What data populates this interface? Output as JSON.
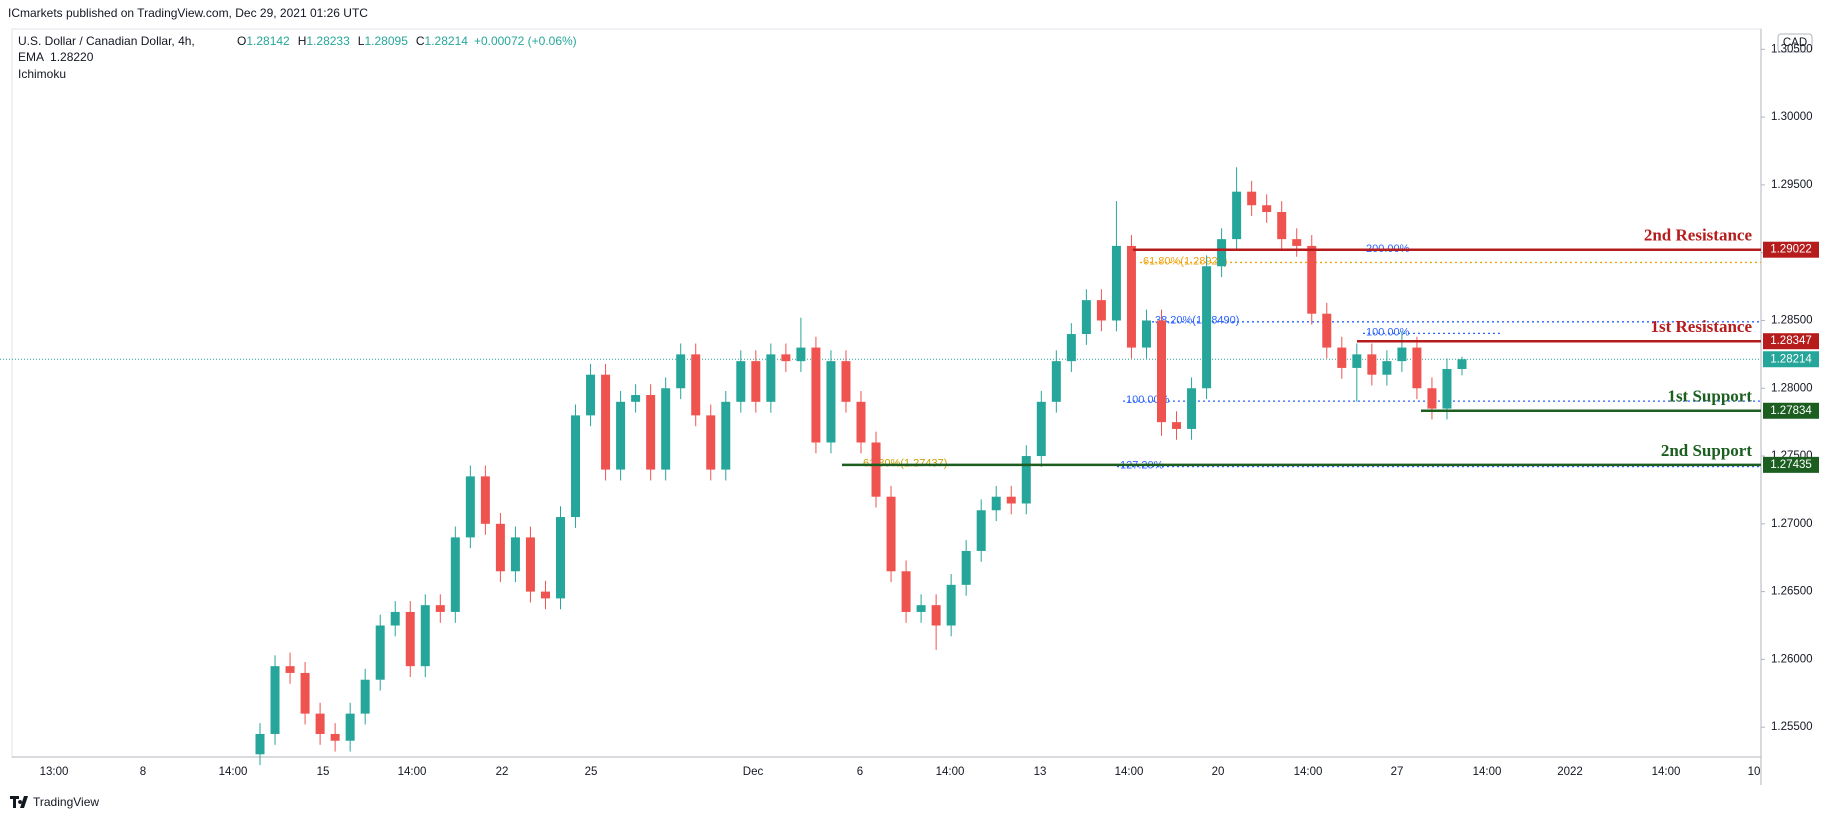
{
  "header": {
    "publisher": "ICmarkets published on TradingView.com, Dec 29, 2021 01:26 UTC"
  },
  "chart_data": {
    "type": "candlestick",
    "title": "U.S. Dollar / Canadian Dollar, 4h,",
    "currency": "CAD",
    "ohlc_prefixes": [
      "O",
      "H",
      "L",
      "C"
    ],
    "change": "+0.00072 (+0.06%)",
    "indicators": [
      "EMA",
      "Ichimoku"
    ],
    "ema_value": {
      "value": 1.2822,
      "label": "1.28220"
    },
    "up_color": "#26a69a",
    "down_color": "#ef5350",
    "open": [
      1.253,
      1.2545,
      1.2595,
      1.259,
      1.256,
      1.2545,
      1.254,
      1.256,
      1.2585,
      1.2625,
      1.2635,
      1.2595,
      1.264,
      1.2635,
      1.269,
      1.2735,
      1.27,
      1.2665,
      1.269,
      1.265,
      1.2645,
      1.2705,
      1.278,
      1.281,
      1.274,
      1.279,
      1.2795,
      1.274,
      1.28,
      1.2825,
      1.278,
      1.274,
      1.279,
      1.282,
      1.279,
      1.2825,
      1.282,
      1.283,
      1.276,
      1.282,
      1.279,
      1.276,
      1.272,
      1.2665,
      1.2635,
      1.264,
      1.2625,
      1.2655,
      1.268,
      1.271,
      1.272,
      1.2715,
      1.275,
      1.279,
      1.282,
      1.284,
      1.2865,
      1.285,
      1.2905,
      1.283,
      1.285,
      1.2775,
      1.277,
      1.28,
      1.289,
      1.291,
      1.2945,
      1.2935,
      1.293,
      1.291,
      1.2905,
      1.2855,
      1.283,
      1.2815,
      1.2825,
      1.281,
      1.282,
      1.283,
      1.28,
      1.2785,
      1.28142
    ],
    "high": [
      1.2553,
      1.2603,
      1.2605,
      1.2598,
      1.2568,
      1.2553,
      1.2568,
      1.2593,
      1.2633,
      1.2643,
      1.2643,
      1.2648,
      1.2648,
      1.2698,
      1.2743,
      1.2743,
      1.2708,
      1.2698,
      1.2698,
      1.2658,
      1.2713,
      1.2788,
      1.2818,
      1.2818,
      1.2798,
      1.2803,
      1.2803,
      1.2808,
      1.2833,
      1.2833,
      1.2788,
      1.2798,
      1.2828,
      1.2828,
      1.2833,
      1.2833,
      1.2852,
      1.2838,
      1.2828,
      1.2828,
      1.2798,
      1.2768,
      1.2728,
      1.2673,
      1.2648,
      1.2648,
      1.2663,
      1.2688,
      1.2718,
      1.2728,
      1.2728,
      1.2758,
      1.2798,
      1.2828,
      1.2848,
      1.2873,
      1.2873,
      1.2938,
      1.2913,
      1.2858,
      1.2858,
      1.2783,
      1.2808,
      1.2898,
      1.2918,
      1.2963,
      1.2953,
      1.2943,
      1.2938,
      1.2918,
      1.2913,
      1.2863,
      1.2838,
      1.2833,
      1.2833,
      1.2828,
      1.2842,
      1.2838,
      1.2808,
      1.2822,
      1.28233
    ],
    "low": [
      1.2522,
      1.2537,
      1.2582,
      1.2552,
      1.2537,
      1.2532,
      1.2532,
      1.2552,
      1.2577,
      1.2617,
      1.2587,
      1.2587,
      1.2627,
      1.2627,
      1.2682,
      1.2692,
      1.2657,
      1.2657,
      1.2642,
      1.2637,
      1.2637,
      1.2697,
      1.2772,
      1.2732,
      1.2732,
      1.2782,
      1.2732,
      1.2732,
      1.2792,
      1.2772,
      1.2732,
      1.2732,
      1.2782,
      1.2782,
      1.2782,
      1.2812,
      1.2812,
      1.2752,
      1.2752,
      1.2782,
      1.2752,
      1.2712,
      1.2657,
      1.2627,
      1.2627,
      1.2607,
      1.2617,
      1.2647,
      1.2672,
      1.2702,
      1.2707,
      1.2707,
      1.2742,
      1.2782,
      1.2812,
      1.2832,
      1.2842,
      1.2842,
      1.2822,
      1.2822,
      1.2765,
      1.2762,
      1.2762,
      1.2792,
      1.2882,
      1.2902,
      1.2927,
      1.2922,
      1.2902,
      1.2897,
      1.2847,
      1.2822,
      1.2807,
      1.279,
      1.2802,
      1.2802,
      1.2812,
      1.2792,
      1.2777,
      1.2777,
      1.28095
    ],
    "close": [
      1.2545,
      1.2595,
      1.259,
      1.256,
      1.2545,
      1.254,
      1.256,
      1.2585,
      1.2625,
      1.2635,
      1.2595,
      1.264,
      1.2635,
      1.269,
      1.2735,
      1.27,
      1.2665,
      1.269,
      1.265,
      1.2645,
      1.2705,
      1.278,
      1.281,
      1.274,
      1.279,
      1.2795,
      1.274,
      1.28,
      1.2825,
      1.278,
      1.274,
      1.279,
      1.282,
      1.279,
      1.2825,
      1.282,
      1.283,
      1.276,
      1.282,
      1.279,
      1.276,
      1.272,
      1.2665,
      1.2635,
      1.264,
      1.2625,
      1.2655,
      1.268,
      1.271,
      1.272,
      1.2715,
      1.275,
      1.279,
      1.282,
      1.284,
      1.2865,
      1.285,
      1.2905,
      1.283,
      1.285,
      1.2775,
      1.277,
      1.28,
      1.289,
      1.291,
      1.2945,
      1.2935,
      1.293,
      1.291,
      1.2905,
      1.2855,
      1.283,
      1.2815,
      1.2825,
      1.281,
      1.282,
      1.283,
      1.28,
      1.2785,
      1.28142,
      1.28214
    ],
    "ylim": [
      1.2528,
      1.3065
    ],
    "yticks": [
      {
        "value": 1.255,
        "label": "1.25500"
      },
      {
        "value": 1.26,
        "label": "1.26000"
      },
      {
        "value": 1.265,
        "label": "1.26500"
      },
      {
        "value": 1.27,
        "label": "1.27000"
      },
      {
        "value": 1.275,
        "label": "1.27500"
      },
      {
        "value": 1.28,
        "label": "1.28000"
      },
      {
        "value": 1.285,
        "label": "1.28500"
      },
      {
        "value": 1.29,
        "label": "1.29000"
      },
      {
        "value": 1.295,
        "label": "1.29500"
      },
      {
        "value": 1.3,
        "label": "1.30000"
      },
      {
        "value": 1.305,
        "label": "1.30500"
      }
    ],
    "xtick_labels": [
      "13:00",
      "8",
      "14:00",
      "15",
      "14:00",
      "22",
      "25",
      "Dec",
      "6",
      "14:00",
      "13",
      "14:00",
      "20",
      "14:00",
      "27",
      "14:00",
      "2022",
      "14:00",
      "10"
    ],
    "levels": [
      {
        "name": "2nd Resistance",
        "value": 1.29022,
        "color": "#b71c1c"
      },
      {
        "name": "1st Resistance",
        "value": 1.28347,
        "color": "#b71c1c"
      },
      {
        "name": "1st Support",
        "value": 1.27834,
        "color": "#1b5e20"
      },
      {
        "name": "2nd Support",
        "value": 1.27435,
        "color": "#1b5e20"
      }
    ],
    "fib_levels": [
      {
        "label": "200.00%",
        "value": 1.2902,
        "color": "#2962ff"
      },
      {
        "label": "61.80%(1.28928)",
        "value": 1.28928,
        "color": "#f0a30a"
      },
      {
        "label": "38.20%(1.28490)",
        "value": 1.2849,
        "color": "#2962ff"
      },
      {
        "label": "100.00%",
        "value": 1.28405,
        "color": "#2962ff"
      },
      {
        "label": "100.00%",
        "value": 1.27905,
        "color": "#2962ff"
      },
      {
        "label": "127.20%",
        "value": 1.27422,
        "color": "#2962ff"
      },
      {
        "label": "61.80%(1.27437)",
        "value": 1.27437,
        "color": "#c8a000"
      }
    ]
  },
  "footer": {
    "brand": "TradingView"
  }
}
